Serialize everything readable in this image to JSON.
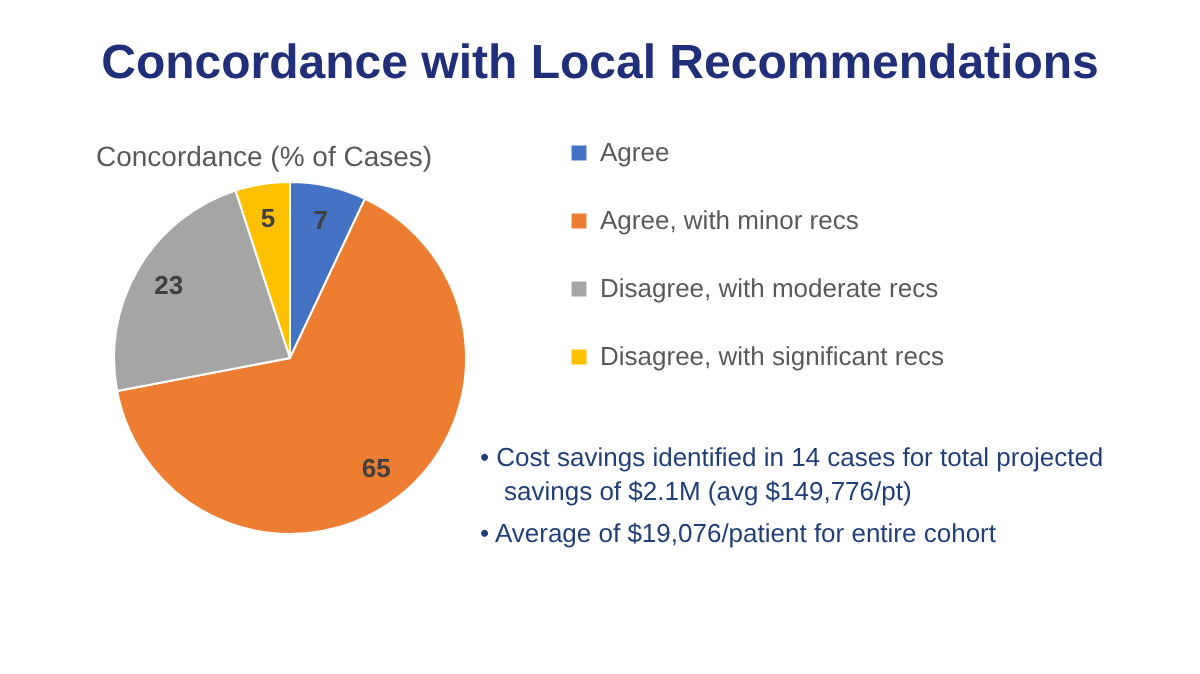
{
  "chart_data": {
    "type": "pie",
    "title": "Concordance with Local Recommendations",
    "subtitle": "Concordance (% of Cases)",
    "categories": [
      "Agree",
      "Agree, with minor recs",
      "Disagree, with moderate recs",
      "Disagree, with significant recs"
    ],
    "values": [
      7,
      65,
      23,
      5
    ],
    "colors": [
      "#4472c4",
      "#ed7d31",
      "#a5a5a5",
      "#ffc000"
    ],
    "data_labels": true,
    "legend": "right",
    "annotations": [
      "• Cost savings identified in 14 cases for total projected savings of $2.1M (avg $149,776/pt)",
      "• Average of $19,076/patient for entire cohort"
    ]
  }
}
